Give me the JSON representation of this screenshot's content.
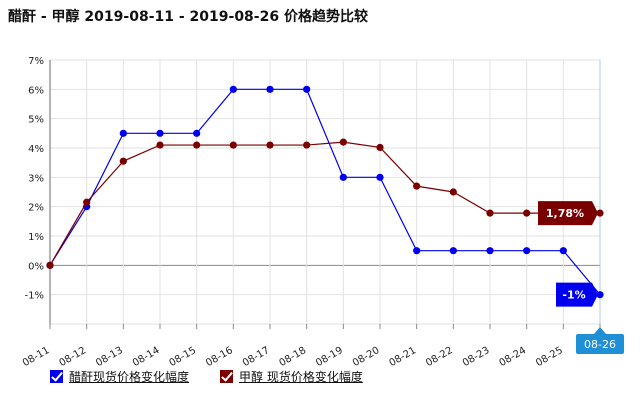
{
  "title": "醋酐 - 甲醇 2019-08-11 - 2019-08-26 价格趋势比较",
  "legend": [
    {
      "label": "醋酐现货价格变化幅度",
      "color": "#0000ee",
      "checked": true
    },
    {
      "label": "甲醇 现货价格变化幅度",
      "color": "#7a0000",
      "checked": true
    }
  ],
  "chart_data": {
    "type": "line",
    "x": [
      "08-11",
      "08-12",
      "08-13",
      "08-14",
      "08-15",
      "08-16",
      "08-17",
      "08-18",
      "08-19",
      "08-20",
      "08-21",
      "08-22",
      "08-23",
      "08-24",
      "08-25",
      "08-26"
    ],
    "y_ticks": [
      "7%",
      "6%",
      "5%",
      "4%",
      "3%",
      "2%",
      "1%",
      "0%",
      "-1%"
    ],
    "ylim": [
      -2,
      7
    ],
    "grid": true,
    "series": [
      {
        "name": "醋酐现货价格变化幅度",
        "color": "#0000ee",
        "values": [
          0,
          2,
          4.5,
          4.5,
          4.5,
          6,
          6,
          6,
          3,
          3,
          0.5,
          0.5,
          0.5,
          0.5,
          0.5,
          -1
        ],
        "end_label": "-1%"
      },
      {
        "name": "甲醇 现货价格变化幅度",
        "color": "#7a0000",
        "values": [
          0,
          2.15,
          3.55,
          4.1,
          4.1,
          4.1,
          4.1,
          4.1,
          4.2,
          4.02,
          2.7,
          2.5,
          1.78,
          1.78,
          1.78,
          1.78
        ],
        "end_label": "1,78%"
      }
    ],
    "highlight_x": "08-26",
    "highlight_color": "#1f8fd6"
  }
}
